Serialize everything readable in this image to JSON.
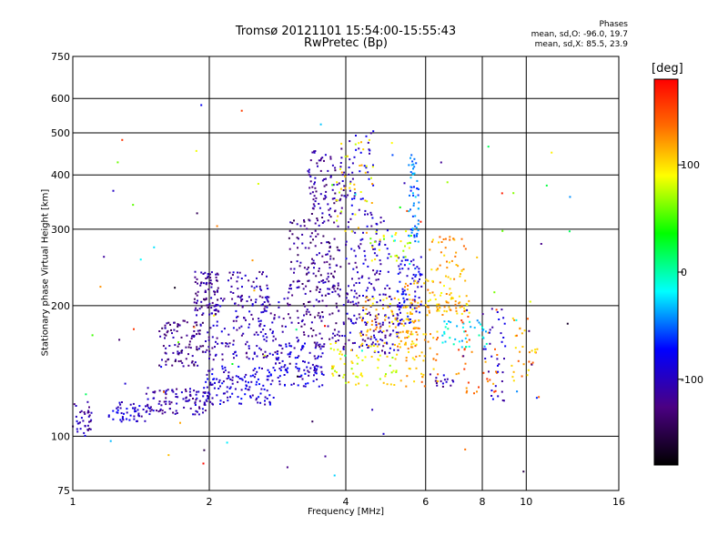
{
  "chart_data": {
    "type": "scatter",
    "title": "Tromsø 20121101 15:54:00-15:55:43",
    "subtitle": "RwPretec (Bp)",
    "xlabel": "Frequency [MHz]",
    "ylabel": "Stationary phase Virtual Height [km]",
    "x_scale": "log",
    "y_scale": "log",
    "xlim": [
      1,
      16
    ],
    "ylim": [
      75,
      750
    ],
    "x_ticks": [
      1,
      2,
      4,
      6,
      8,
      10,
      16
    ],
    "y_ticks": [
      75,
      100,
      200,
      300,
      400,
      500,
      600,
      750
    ],
    "grid": true,
    "annotation": {
      "title": "Phases",
      "line_o": "mean, sd,O: -96.0, 19.7",
      "line_x": "mean, sd,X:  85.5, 23.9"
    },
    "colorbar": {
      "label": "[deg]",
      "range": [
        -180,
        180
      ],
      "ticks": [
        100,
        0,
        -100
      ],
      "colormap": "rainbow"
    },
    "series": [
      {
        "clusters": [
          {
            "f": [
              1.0,
              1.1
            ],
            "h": [
              100,
              120
            ],
            "phase": -110,
            "n": 35
          },
          {
            "f": [
              1.2,
              1.45
            ],
            "h": [
              108,
              120
            ],
            "phase": -100,
            "n": 45
          },
          {
            "f": [
              1.45,
              2.0
            ],
            "h": [
              112,
              130
            ],
            "phase": -110,
            "n": 110
          },
          {
            "f": [
              1.95,
              2.8
            ],
            "h": [
              118,
              145
            ],
            "phase": -95,
            "n": 130
          },
          {
            "f": [
              2.8,
              3.6
            ],
            "h": [
              130,
              165
            ],
            "phase": -95,
            "n": 110
          },
          {
            "f": [
              1.55,
              2.0
            ],
            "h": [
              145,
              185
            ],
            "phase": -125,
            "n": 110
          },
          {
            "f": [
              1.85,
              2.1
            ],
            "h": [
              190,
              240
            ],
            "phase": -120,
            "n": 80
          },
          {
            "f": [
              2.0,
              2.9
            ],
            "h": [
              150,
              210
            ],
            "phase": -110,
            "n": 150
          },
          {
            "f": [
              2.2,
              2.7
            ],
            "h": [
              200,
              240
            ],
            "phase": -115,
            "n": 45
          },
          {
            "f": [
              2.9,
              3.9
            ],
            "h": [
              160,
              230
            ],
            "phase": -120,
            "n": 130
          },
          {
            "f": [
              3.0,
              3.9
            ],
            "h": [
              230,
              320
            ],
            "phase": -125,
            "n": 100
          },
          {
            "f": [
              3.3,
              4.0
            ],
            "h": [
              320,
              460
            ],
            "phase": -120,
            "n": 90
          },
          {
            "f": [
              3.9,
              5.3
            ],
            "h": [
              155,
              210
            ],
            "phase": -110,
            "n": 130
          },
          {
            "f": [
              4.0,
              5.0
            ],
            "h": [
              210,
              320
            ],
            "phase": -105,
            "n": 90
          },
          {
            "f": [
              4.0,
              4.6
            ],
            "h": [
              320,
              520
            ],
            "phase": -100,
            "n": 45
          },
          {
            "f": [
              5.2,
              5.9
            ],
            "h": [
              180,
              260
            ],
            "phase": -85,
            "n": 80
          },
          {
            "f": [
              5.5,
              5.8
            ],
            "h": [
              280,
              450
            ],
            "phase": -50,
            "n": 55
          },
          {
            "f": [
              3.7,
              5.3
            ],
            "h": [
              130,
              165
            ],
            "phase": 90,
            "n": 70
          },
          {
            "f": [
              4.3,
              5.9
            ],
            "h": [
              160,
              210
            ],
            "phase": 110,
            "n": 90
          },
          {
            "f": [
              3.8,
              4.6
            ],
            "h": [
              290,
              500
            ],
            "phase": 100,
            "n": 40
          },
          {
            "f": [
              4.5,
              5.6
            ],
            "h": [
              250,
              300
            ],
            "phase": 80,
            "n": 30
          },
          {
            "f": [
              5.4,
              6.4
            ],
            "h": [
              130,
              230
            ],
            "phase": 120,
            "n": 90
          },
          {
            "f": [
              6.0,
              7.5
            ],
            "h": [
              190,
              215
            ],
            "phase": 110,
            "n": 50
          },
          {
            "f": [
              6.1,
              7.4
            ],
            "h": [
              215,
              290
            ],
            "phase": 115,
            "n": 45
          },
          {
            "f": [
              6.5,
              8.2
            ],
            "h": [
              160,
              185
            ],
            "phase": -20,
            "n": 40
          },
          {
            "f": [
              7.0,
              8.7
            ],
            "h": [
              125,
              200
            ],
            "phase": 140,
            "n": 40
          },
          {
            "f": [
              8.0,
              9.0
            ],
            "h": [
              120,
              200
            ],
            "phase": -100,
            "n": 35
          },
          {
            "f": [
              9.2,
              10.6
            ],
            "h": [
              130,
              190
            ],
            "phase": 120,
            "n": 30
          },
          {
            "f": [
              6.0,
              7.0
            ],
            "h": [
              130,
              140
            ],
            "phase": -110,
            "n": 15
          },
          {
            "f": [
              1.0,
              13.0
            ],
            "h": [
              80,
              640
            ],
            "phase": 0,
            "n": 90
          }
        ]
      }
    ]
  }
}
